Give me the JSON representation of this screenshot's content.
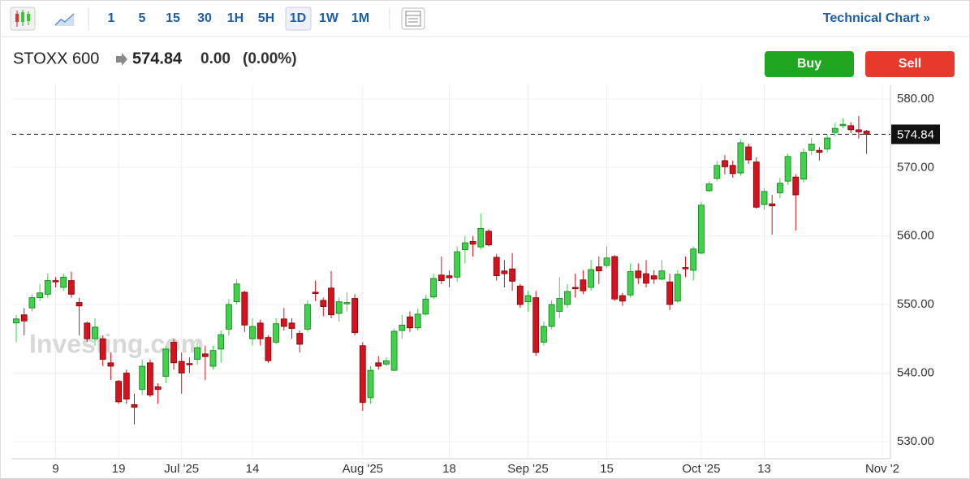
{
  "toolbar": {
    "intervals": [
      "1",
      "5",
      "15",
      "30",
      "1H",
      "5H",
      "1D",
      "1W",
      "1M"
    ],
    "selected_interval": 6,
    "technical_chart": "Technical Chart »"
  },
  "header": {
    "symbol": "STOXX 600",
    "price": "574.84",
    "change": "0.00",
    "change_pct": "(0.00%)"
  },
  "buttons": {
    "buy": "Buy",
    "sell": "Sell"
  },
  "watermark": "Investing.com",
  "chart_data": {
    "type": "candlestick",
    "categories": [
      null,
      null,
      null,
      null,
      null,
      "9",
      null,
      null,
      null,
      null,
      null,
      null,
      null,
      "19",
      null,
      null,
      null,
      null,
      null,
      null,
      null,
      "Jul '25",
      null,
      null,
      null,
      null,
      null,
      null,
      null,
      null,
      "14",
      null,
      null,
      null,
      null,
      null,
      null,
      null,
      null,
      null,
      null,
      null,
      null,
      null,
      "Aug '25",
      null,
      null,
      null,
      null,
      null,
      null,
      null,
      null,
      null,
      null,
      "18",
      null,
      null,
      null,
      null,
      null,
      null,
      null,
      null,
      null,
      "Sep '25",
      null,
      null,
      null,
      null,
      null,
      null,
      null,
      null,
      null,
      "15",
      null,
      null,
      null,
      null,
      null,
      null,
      null,
      null,
      null,
      null,
      null,
      "Oct '25",
      null,
      null,
      null,
      null,
      null,
      null,
      null,
      "13",
      null,
      null,
      null,
      null,
      null,
      null,
      null,
      null,
      null,
      null,
      null,
      null,
      null,
      null,
      "Nov '2"
    ],
    "open": [
      547.3,
      548.5,
      549.5,
      551,
      551.5,
      553.5,
      552.5,
      553.5,
      550.3,
      547.3,
      545,
      545,
      541.5,
      538.8,
      540,
      535.4,
      537.6,
      541.5,
      538,
      539.5,
      544.5,
      541.7,
      541.4,
      542,
      542.8,
      541,
      543.5,
      546.4,
      550.4,
      551.8,
      545,
      547.3,
      545.2,
      544.5,
      547.9,
      547.3,
      545.8,
      546.4,
      551.8,
      550.6,
      552.4,
      548.7,
      550.1,
      550.9,
      544,
      536.4,
      541.5,
      541.3,
      540.4,
      546.2,
      548.2,
      546.6,
      548.6,
      551.1,
      554.3,
      554.2,
      554,
      558,
      559.2,
      558.4,
      560.7,
      556.9,
      554.9,
      555.2,
      552.7,
      550.4,
      551,
      544.5,
      546.8,
      549,
      550,
      552.5,
      553.6,
      552.5,
      555.5,
      555.7,
      557,
      551.3,
      551.4,
      554.9,
      554.5,
      554.2,
      553.7,
      553.3,
      550.5,
      555.4,
      555,
      557.5,
      566.6,
      568.4,
      571,
      570.3,
      569.2,
      573,
      570.8,
      564.6,
      564.7,
      566.3,
      568,
      568.6,
      568.3,
      572.5,
      572.5,
      572.7,
      575.1,
      576.1,
      576.1,
      575.5,
      575.3,
      null,
      null
    ],
    "high": [
      548.5,
      549.5,
      551.5,
      553,
      554.5,
      554,
      554.5,
      554.8,
      551,
      547.5,
      548,
      545.5,
      543,
      539,
      540.5,
      537,
      542,
      542,
      538.5,
      544,
      545,
      543,
      542.3,
      544.5,
      544,
      544,
      546.2,
      550.8,
      553.7,
      552,
      548,
      547.8,
      545.5,
      548,
      549.5,
      548,
      546.2,
      550.6,
      553.5,
      551,
      554.9,
      551,
      551.8,
      551.5,
      544.5,
      541,
      542.5,
      542.3,
      546.5,
      548.5,
      549,
      549.4,
      551.4,
      554.5,
      557,
      555,
      558.5,
      560,
      560,
      563.3,
      561,
      557.4,
      556.5,
      557.5,
      553,
      552,
      552,
      547.5,
      550.6,
      554,
      553,
      554.5,
      555,
      556.5,
      557,
      558.5,
      557.2,
      551.7,
      556,
      556,
      556.5,
      555,
      556.5,
      554.5,
      555,
      557,
      558.5,
      565,
      568,
      570.9,
      571.8,
      571,
      574.1,
      573.5,
      571.5,
      567,
      566,
      568.5,
      572,
      569,
      572.8,
      574.3,
      573,
      574.8,
      576.5,
      577.2,
      576.6,
      577.5,
      575.5,
      null,
      null
    ],
    "low": [
      544.5,
      545.5,
      549,
      550.5,
      551,
      552.5,
      552,
      551,
      545.5,
      544.5,
      544,
      541,
      539,
      535.5,
      535.5,
      532.5,
      536.8,
      536.5,
      535.5,
      538.5,
      540.5,
      537,
      540,
      541.2,
      539,
      540.5,
      541.5,
      545.5,
      550,
      546,
      544,
      544,
      541.5,
      544.2,
      546.2,
      545,
      543,
      546,
      550.5,
      548.3,
      548,
      547.5,
      549,
      545.5,
      534.5,
      535.5,
      540.5,
      541,
      540.3,
      545,
      546,
      546.2,
      548.4,
      550.8,
      553,
      552.5,
      553.3,
      556,
      557,
      558,
      558.5,
      553.5,
      552.5,
      552,
      549.5,
      549,
      542.5,
      544,
      546.4,
      548,
      549.5,
      551,
      551.5,
      552,
      553,
      555.3,
      550.5,
      549.8,
      551,
      553,
      552.5,
      553,
      553.5,
      549.2,
      550.3,
      554,
      553.5,
      557.3,
      566.4,
      568,
      569,
      568.5,
      568.8,
      570.5,
      564,
      563.8,
      560.2,
      565.5,
      567.5,
      560.8,
      567.8,
      571.8,
      571,
      572.2,
      574.5,
      575.7,
      575,
      574.2,
      572,
      null,
      null
    ],
    "close": [
      547.9,
      547.6,
      551,
      551.7,
      553.5,
      553.3,
      554,
      551.5,
      549.8,
      545,
      546.7,
      542,
      541,
      535.8,
      536.2,
      535,
      541,
      536.8,
      537.6,
      543.5,
      541.5,
      540,
      541.2,
      543.7,
      542.4,
      543.3,
      545.6,
      550,
      553,
      547,
      546.8,
      545,
      541.8,
      547.2,
      546.8,
      546.5,
      544.2,
      550,
      551.6,
      549.7,
      548.5,
      550.4,
      550.3,
      545.9,
      535.7,
      540.4,
      541,
      541.8,
      546.1,
      547,
      546.6,
      548.6,
      550.8,
      553.8,
      553.5,
      553.9,
      557.7,
      559,
      558.8,
      561.1,
      558.7,
      554.2,
      554.5,
      553.4,
      550,
      551.3,
      543,
      546.8,
      550,
      550.9,
      551.9,
      552.3,
      552,
      555.1,
      554.9,
      556.8,
      550.8,
      550.5,
      554.8,
      553.9,
      553.1,
      553.7,
      554.9,
      550,
      554.4,
      555.2,
      558.1,
      564.5,
      567.6,
      570.3,
      570.1,
      569.1,
      573.6,
      571.1,
      564.2,
      566.5,
      564.4,
      567.7,
      571.6,
      566,
      572.2,
      573.4,
      572.2,
      574.3,
      575.7,
      576.3,
      575.5,
      575.2,
      574.84,
      null,
      null
    ],
    "up_color": "#3fd24a",
    "down_color": "#d8111c",
    "ylim": [
      527.5,
      582
    ],
    "yticks": [
      {
        "value": 530,
        "label": "530.00"
      },
      {
        "value": 540,
        "label": "540.00"
      },
      {
        "value": 550,
        "label": "550.00"
      },
      {
        "value": 560,
        "label": "560.00"
      },
      {
        "value": 570,
        "label": "570.00"
      },
      {
        "value": 580,
        "label": "580.00"
      }
    ],
    "last_price": {
      "value": 574.84,
      "label": "574.84"
    },
    "grid": true
  }
}
